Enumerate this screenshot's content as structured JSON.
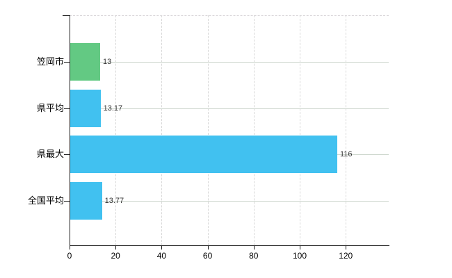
{
  "chart_data": {
    "type": "bar",
    "orientation": "horizontal",
    "title": "",
    "categories": [
      "笠岡市",
      "県平均",
      "県最大",
      "全国平均"
    ],
    "series": [
      {
        "name": "value",
        "values": [
          13,
          13.17,
          116,
          13.77
        ]
      }
    ],
    "value_labels": [
      "13",
      "13.17",
      "116",
      "13.77"
    ],
    "bar_colors": [
      "#63c983",
      "#41c1f0",
      "#41c1f0",
      "#41c1f0"
    ],
    "x_ticks": [
      {
        "value": 0,
        "label": "0"
      },
      {
        "value": 20,
        "label": "20"
      },
      {
        "value": 40,
        "label": "40"
      },
      {
        "value": 60,
        "label": "60"
      },
      {
        "value": 80,
        "label": "80"
      },
      {
        "value": 100,
        "label": "100"
      },
      {
        "value": 120,
        "label": "120"
      }
    ],
    "xlim": [
      0,
      139
    ],
    "ylabel": "",
    "xlabel": "",
    "grid": true,
    "legend_position": "none",
    "colors": {
      "background": "#ffffff",
      "axis": "#1a1a1a",
      "grid_horizontal": "#ccd5cc",
      "grid_vertical": "#d8d8d8",
      "value_label_text": "#333333",
      "category_label_text": "#000000",
      "bar_green": "#63c983",
      "bar_blue": "#41c1f0"
    }
  }
}
